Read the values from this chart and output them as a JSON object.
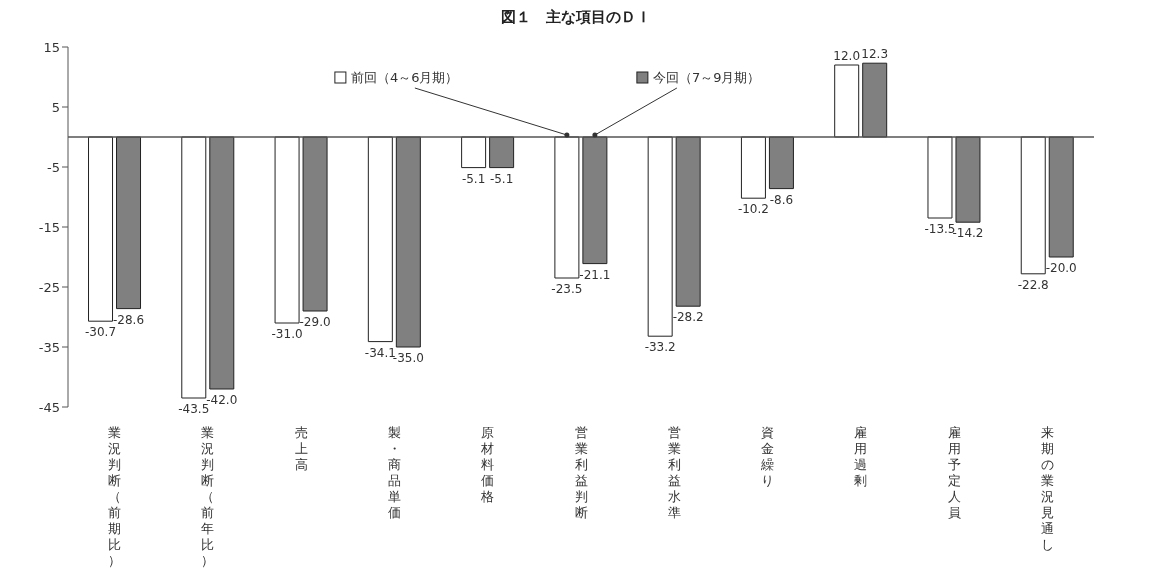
{
  "chart_data": {
    "type": "bar",
    "title": "図１　主な項目のＤＩ",
    "categories": [
      "業況判断（前期比）",
      "業況判断（前年比）",
      "売上高",
      "製・商品単価",
      "原材料価格",
      "営業利益判断",
      "営業利益水準",
      "資金繰り",
      "雇用過剰",
      "雇用予定人員",
      "来期の業況見通し"
    ],
    "series": [
      {
        "name": "前回（4～6月期）",
        "color": "#ffffff",
        "values": [
          -30.7,
          -43.5,
          -31.0,
          -34.1,
          -5.1,
          -23.5,
          -33.2,
          -10.2,
          12.0,
          -13.5,
          -22.8
        ],
        "value_labels": [
          "-30.7",
          "-43.5",
          "-31.0",
          "-34.1",
          "-5.1",
          "-23.5",
          "-33.2",
          "-10.2",
          "12.0",
          "-13.5",
          "-22.8"
        ]
      },
      {
        "name": "今回（7～9月期）",
        "color": "#808080",
        "values": [
          -28.6,
          -42.0,
          -29.0,
          -35.0,
          -5.1,
          -21.1,
          -28.2,
          -8.6,
          12.3,
          -14.2,
          -20.0
        ],
        "value_labels": [
          "-28.6",
          "-42.0",
          "-29.0",
          "-35.0",
          "-5.1",
          "-21.1",
          "-28.2",
          "-8.6",
          "12.3",
          "-14.2",
          "-20.0"
        ]
      }
    ],
    "ylim": [
      -45,
      15
    ],
    "yticks": [
      15,
      5,
      -5,
      -15,
      -25,
      -35,
      -45
    ],
    "ref_lines": [
      {
        "axis": "y",
        "value": 0,
        "color": "#555555"
      }
    ],
    "grid": false,
    "legend": "top"
  }
}
